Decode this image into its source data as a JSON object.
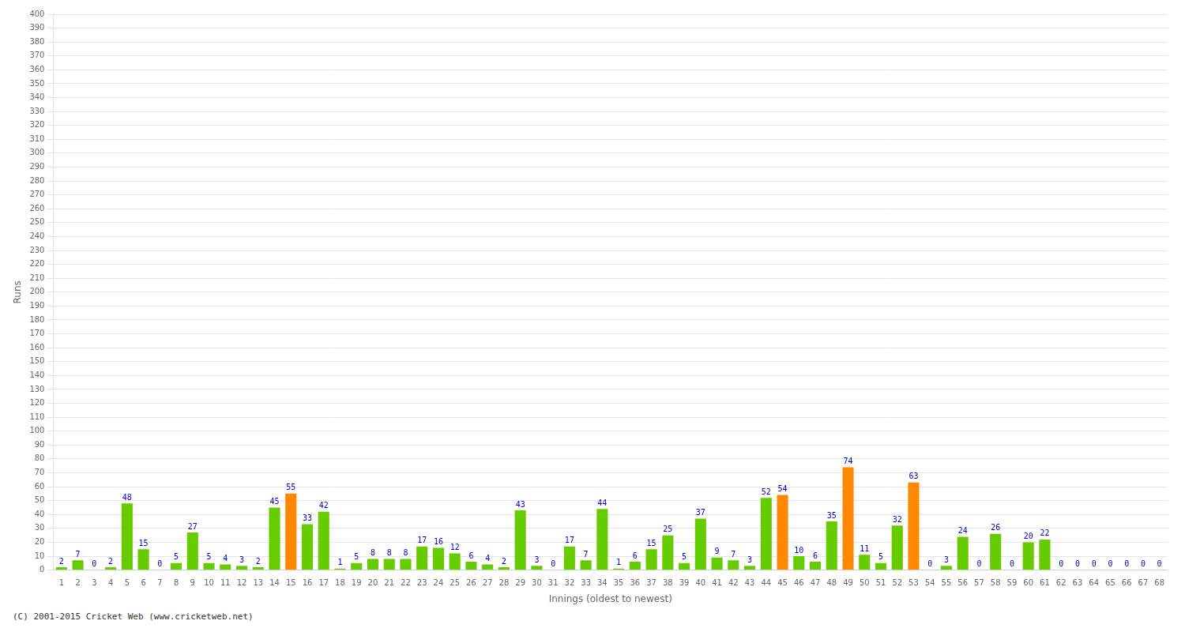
{
  "chart_data": {
    "type": "bar",
    "categories": [
      1,
      2,
      3,
      4,
      5,
      6,
      7,
      8,
      9,
      10,
      11,
      12,
      13,
      14,
      15,
      16,
      17,
      18,
      19,
      20,
      21,
      22,
      23,
      24,
      25,
      26,
      27,
      28,
      29,
      30,
      31,
      32,
      33,
      34,
      35,
      36,
      37,
      38,
      39,
      40,
      41,
      42,
      43,
      44,
      45,
      46,
      47,
      48,
      49,
      50,
      51,
      52,
      53,
      54,
      55,
      56,
      57,
      58,
      59,
      60,
      61,
      62,
      63,
      64,
      65,
      66,
      67,
      68
    ],
    "values": [
      2,
      7,
      0,
      2,
      48,
      15,
      0,
      5,
      27,
      5,
      4,
      3,
      2,
      45,
      55,
      33,
      42,
      1,
      5,
      8,
      8,
      8,
      17,
      16,
      12,
      6,
      4,
      2,
      43,
      3,
      0,
      17,
      7,
      44,
      1,
      6,
      15,
      25,
      5,
      37,
      9,
      7,
      3,
      52,
      54,
      10,
      6,
      35,
      74,
      11,
      5,
      32,
      63,
      0,
      3,
      24,
      0,
      26,
      0,
      20,
      22,
      0,
      0,
      0,
      0,
      0,
      0,
      0
    ],
    "colors": [
      "#66cc00",
      "#66cc00",
      "#66cc00",
      "#66cc00",
      "#66cc00",
      "#66cc00",
      "#66cc00",
      "#66cc00",
      "#66cc00",
      "#66cc00",
      "#66cc00",
      "#66cc00",
      "#66cc00",
      "#66cc00",
      "#ff8800",
      "#66cc00",
      "#66cc00",
      "#66cc00",
      "#66cc00",
      "#66cc00",
      "#66cc00",
      "#66cc00",
      "#66cc00",
      "#66cc00",
      "#66cc00",
      "#66cc00",
      "#66cc00",
      "#66cc00",
      "#66cc00",
      "#66cc00",
      "#66cc00",
      "#66cc00",
      "#66cc00",
      "#66cc00",
      "#66cc00",
      "#66cc00",
      "#66cc00",
      "#66cc00",
      "#66cc00",
      "#66cc00",
      "#66cc00",
      "#66cc00",
      "#66cc00",
      "#66cc00",
      "#ff8800",
      "#66cc00",
      "#66cc00",
      "#66cc00",
      "#ff8800",
      "#66cc00",
      "#66cc00",
      "#66cc00",
      "#ff8800",
      "#66cc00",
      "#66cc00",
      "#66cc00",
      "#66cc00",
      "#66cc00",
      "#66cc00",
      "#66cc00",
      "#66cc00",
      "#66cc00",
      "#66cc00",
      "#66cc00",
      "#66cc00",
      "#66cc00",
      "#66cc00",
      "#66cc00"
    ],
    "xlabel": "Innings (oldest to newest)",
    "ylabel": "Runs",
    "ylim": [
      0,
      400
    ],
    "yticks": [
      0,
      10,
      20,
      30,
      40,
      50,
      60,
      70,
      80,
      90,
      100,
      110,
      120,
      130,
      140,
      150,
      160,
      170,
      180,
      190,
      200,
      210,
      220,
      230,
      240,
      250,
      260,
      270,
      280,
      290,
      300,
      310,
      320,
      330,
      340,
      350,
      360,
      370,
      380,
      390,
      400
    ],
    "grid": true,
    "data_labels": true,
    "annotations": [
      "(C) 2001-2015 Cricket Web (www.cricketweb.net)"
    ]
  }
}
